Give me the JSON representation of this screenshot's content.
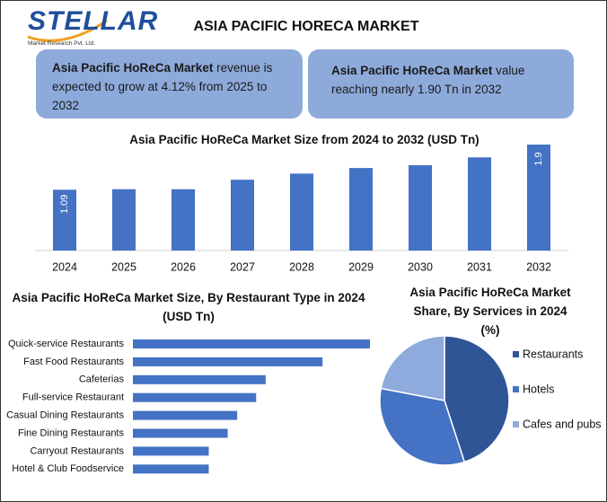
{
  "header": {
    "logo": "STELLAR",
    "logo_subtitle": "Market Research Pvt. Ltd.",
    "title": "ASIA PACIFIC HORECA MARKET"
  },
  "info_boxes": [
    {
      "bold": "Asia Pacific HoReCa Market",
      "text": " revenue is expected to grow at 4.12% from 2025 to 2032"
    },
    {
      "bold": "Asia Pacific HoReCa Market",
      "text": " value reaching nearly 1.90 Tn in 2032"
    }
  ],
  "chart_data": [
    {
      "type": "bar",
      "title": "Asia Pacific HoReCa Market Size from 2024 to 2032 (USD Tn)",
      "categories": [
        "2024",
        "2025",
        "2026",
        "2027",
        "2028",
        "2029",
        "2030",
        "2031",
        "2032"
      ],
      "values": [
        1.09,
        1.1,
        1.1,
        1.27,
        1.38,
        1.48,
        1.53,
        1.67,
        1.9
      ],
      "value_labels": [
        "1.09",
        null,
        null,
        null,
        null,
        null,
        null,
        null,
        "1.9"
      ],
      "color": "#4472c4"
    },
    {
      "type": "hbar",
      "title": "Asia Pacific HoReCa Market Size, By Restaurant Type in 2024 (USD Tn)",
      "categories": [
        "Quick-service Restaurants",
        "Fast Food Restaurants",
        "Cafeterias",
        "Full-service Restaurant",
        "Casual Dining Restaurants",
        "Fine Dining Restaurants",
        "Carryout Restaurants",
        "Hotel & Club Foodservice"
      ],
      "values": [
        0.25,
        0.2,
        0.14,
        0.13,
        0.11,
        0.1,
        0.08,
        0.08
      ],
      "color": "#4472c4"
    },
    {
      "type": "pie",
      "title": "Asia Pacific HoReCa Market Share, By Services in 2024 (%)",
      "categories": [
        "Restaurants",
        "Hotels",
        "Cafes and pubs"
      ],
      "values": [
        45,
        33,
        22
      ],
      "colors": [
        "#2f5597",
        "#4472c4",
        "#8faadc"
      ]
    }
  ]
}
